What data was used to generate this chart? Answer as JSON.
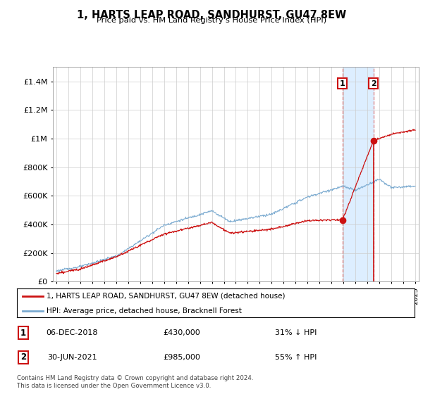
{
  "title": "1, HARTS LEAP ROAD, SANDHURST, GU47 8EW",
  "subtitle": "Price paid vs. HM Land Registry's House Price Index (HPI)",
  "legend_line1": "1, HARTS LEAP ROAD, SANDHURST, GU47 8EW (detached house)",
  "legend_line2": "HPI: Average price, detached house, Bracknell Forest",
  "footnote": "Contains HM Land Registry data © Crown copyright and database right 2024.\nThis data is licensed under the Open Government Licence v3.0.",
  "transaction1_date": "06-DEC-2018",
  "transaction1_price": "£430,000",
  "transaction1_hpi": "31% ↓ HPI",
  "transaction2_date": "30-JUN-2021",
  "transaction2_price": "£985,000",
  "transaction2_hpi": "55% ↑ HPI",
  "hpi_color": "#7aaad0",
  "price_color": "#cc1111",
  "highlight_color": "#ddeeff",
  "dashed_color": "#e08080",
  "grid_color": "#cccccc",
  "ylim": [
    0,
    1500000
  ],
  "yticks": [
    0,
    200000,
    400000,
    600000,
    800000,
    1000000,
    1200000,
    1400000
  ],
  "ytick_labels": [
    "£0",
    "£200K",
    "£400K",
    "£600K",
    "£800K",
    "£1M",
    "£1.2M",
    "£1.4M"
  ],
  "transaction1_year": 2018.92,
  "transaction1_value": 430000,
  "transaction2_year": 2021.5,
  "transaction2_value": 985000
}
